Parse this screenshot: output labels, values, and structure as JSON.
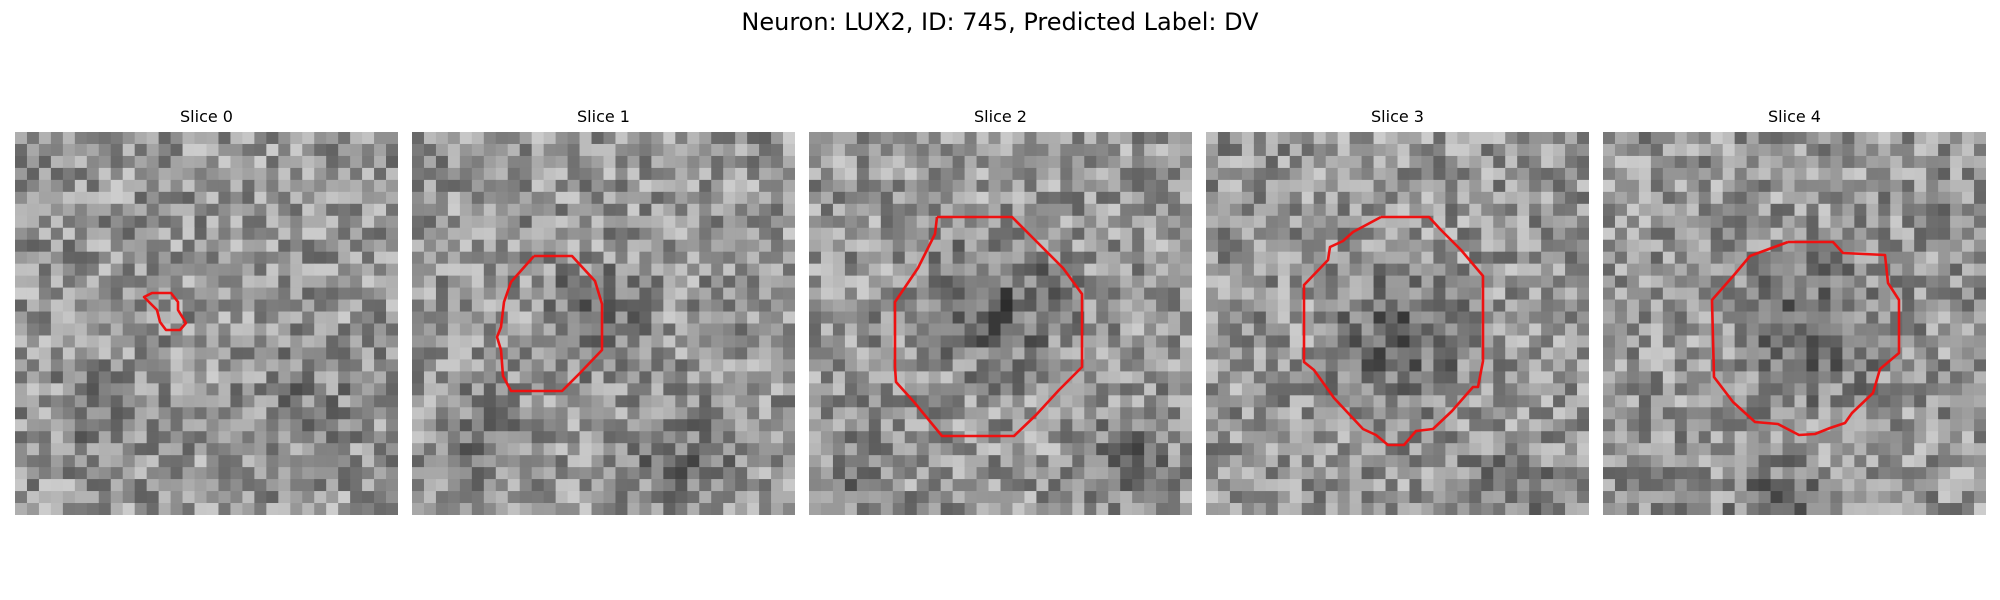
{
  "figure": {
    "title": "Neuron: LUX2, ID: 745, Predicted Label: DV"
  },
  "panels": [
    {
      "title": "Slice 0"
    },
    {
      "title": "Slice 1"
    },
    {
      "title": "Slice 2"
    },
    {
      "title": "Slice 3"
    },
    {
      "title": "Slice 4"
    }
  ],
  "colors": {
    "contour": "#ee1111"
  }
}
